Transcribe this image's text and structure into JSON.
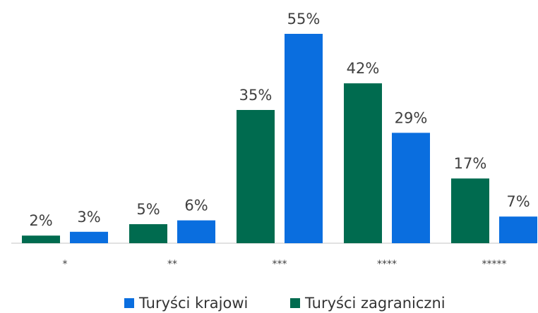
{
  "chart_data": {
    "type": "bar",
    "categories": [
      "*",
      "**",
      "***",
      "****",
      "*****"
    ],
    "series": [
      {
        "name": "Turyści zagraniczni",
        "color": "#006b4f",
        "values": [
          2,
          5,
          35,
          42,
          17
        ],
        "value_labels": [
          "2%",
          "5%",
          "35%",
          "42%",
          "17%"
        ]
      },
      {
        "name": "Turyści krajowi",
        "color": "#0a6edf",
        "values": [
          3,
          6,
          55,
          29,
          7
        ],
        "value_labels": [
          "3%",
          "6%",
          "55%",
          "29%",
          "7%"
        ]
      }
    ],
    "legend": "bottom"
  }
}
